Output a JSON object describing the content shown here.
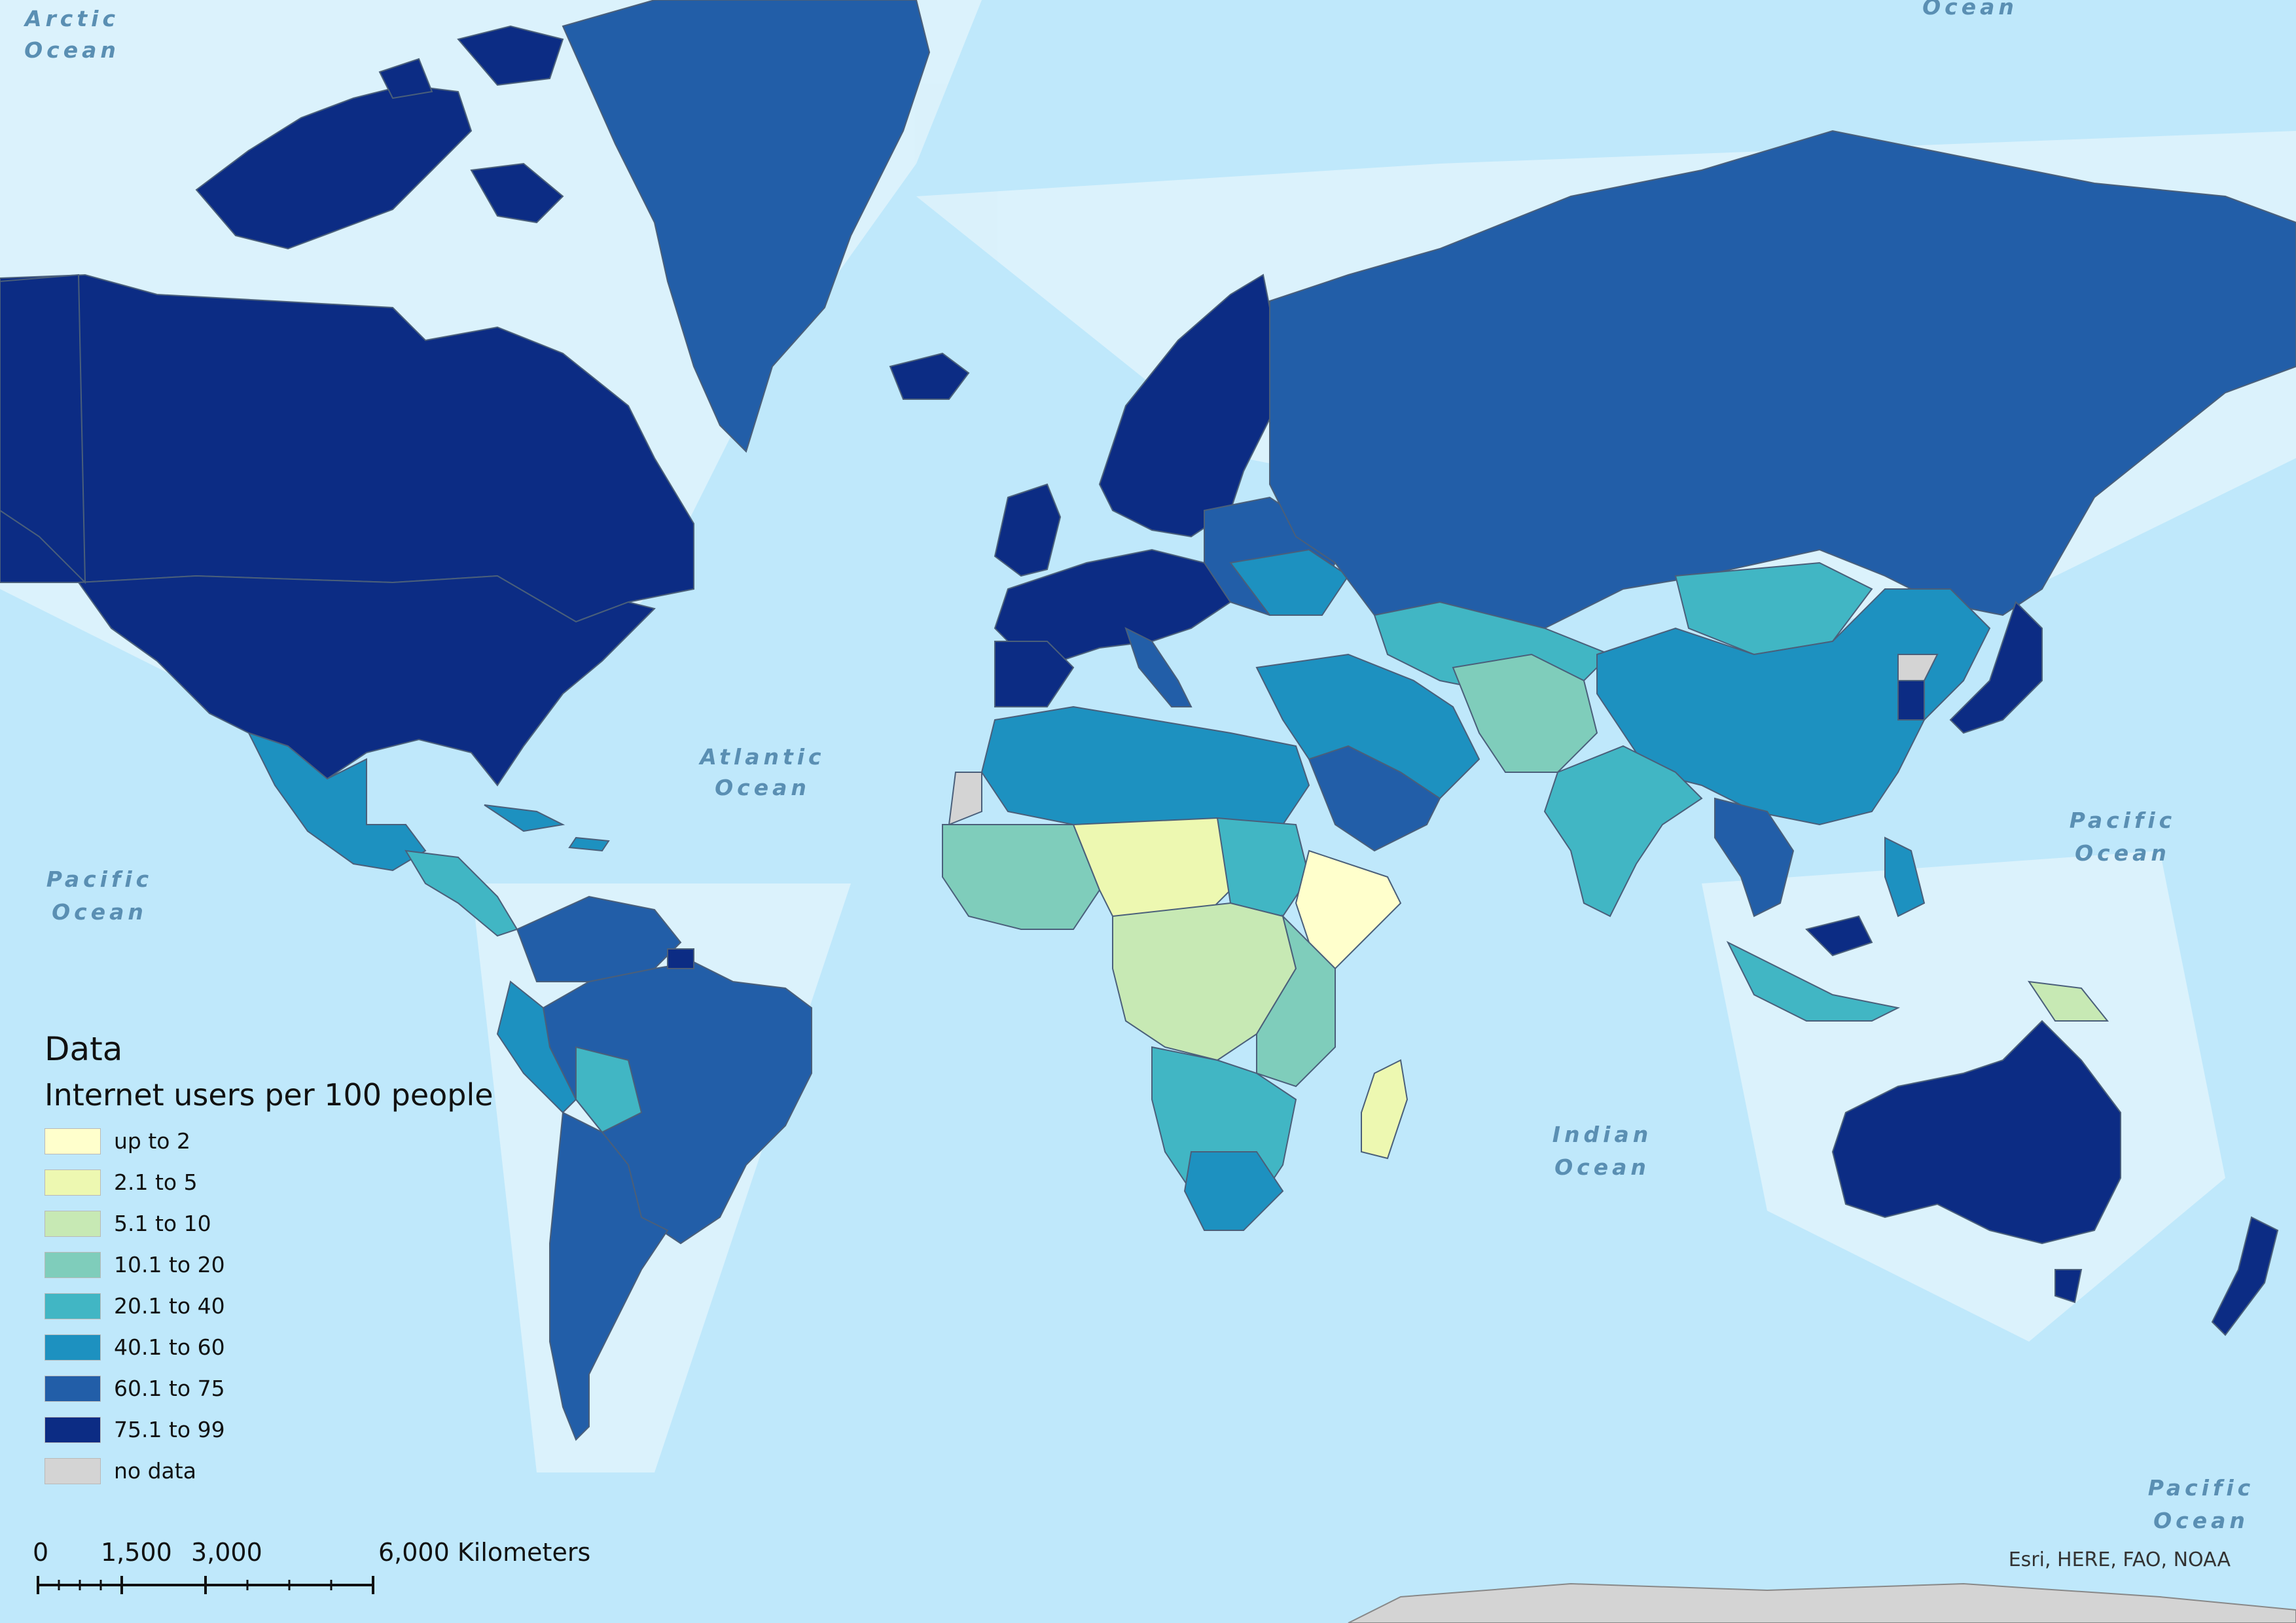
{
  "legend": {
    "title": "Data",
    "subtitle": "Internet users per 100 people",
    "classes": [
      {
        "label": "up to 2",
        "color": "#ffffcc"
      },
      {
        "label": "2.1 to 5",
        "color": "#edf8b1"
      },
      {
        "label": "5.1 to 10",
        "color": "#c7e9b4"
      },
      {
        "label": "10.1 to 20",
        "color": "#7fcdbb"
      },
      {
        "label": "20.1 to 40",
        "color": "#41b6c4"
      },
      {
        "label": "40.1 to 60",
        "color": "#1d91c0"
      },
      {
        "label": "60.1 to 75",
        "color": "#225ea8"
      },
      {
        "label": "75.1 to 99",
        "color": "#0c2c84"
      },
      {
        "label": "no data",
        "color": "#d4d4d4"
      }
    ]
  },
  "ocean_labels": {
    "arctic": [
      "Arctic",
      "Ocean"
    ],
    "arctic_top_right": "Ocean",
    "atlantic": [
      "Atlantic",
      "Ocean"
    ],
    "pacific_west": [
      "Pacific",
      "Ocean"
    ],
    "pacific_east": [
      "Pacific",
      "Ocean"
    ],
    "pacific_south": [
      "Pacific",
      "Ocean"
    ],
    "indian": [
      "Indian",
      "Ocean"
    ]
  },
  "scalebar": {
    "labels": [
      "0",
      "1,500",
      "3,000",
      "6,000 Kilometers"
    ]
  },
  "attribution": "Esri, HERE, FAO, NOAA",
  "colors": {
    "ocean": "#bfe8fb",
    "shallow": "#dff4fd"
  }
}
